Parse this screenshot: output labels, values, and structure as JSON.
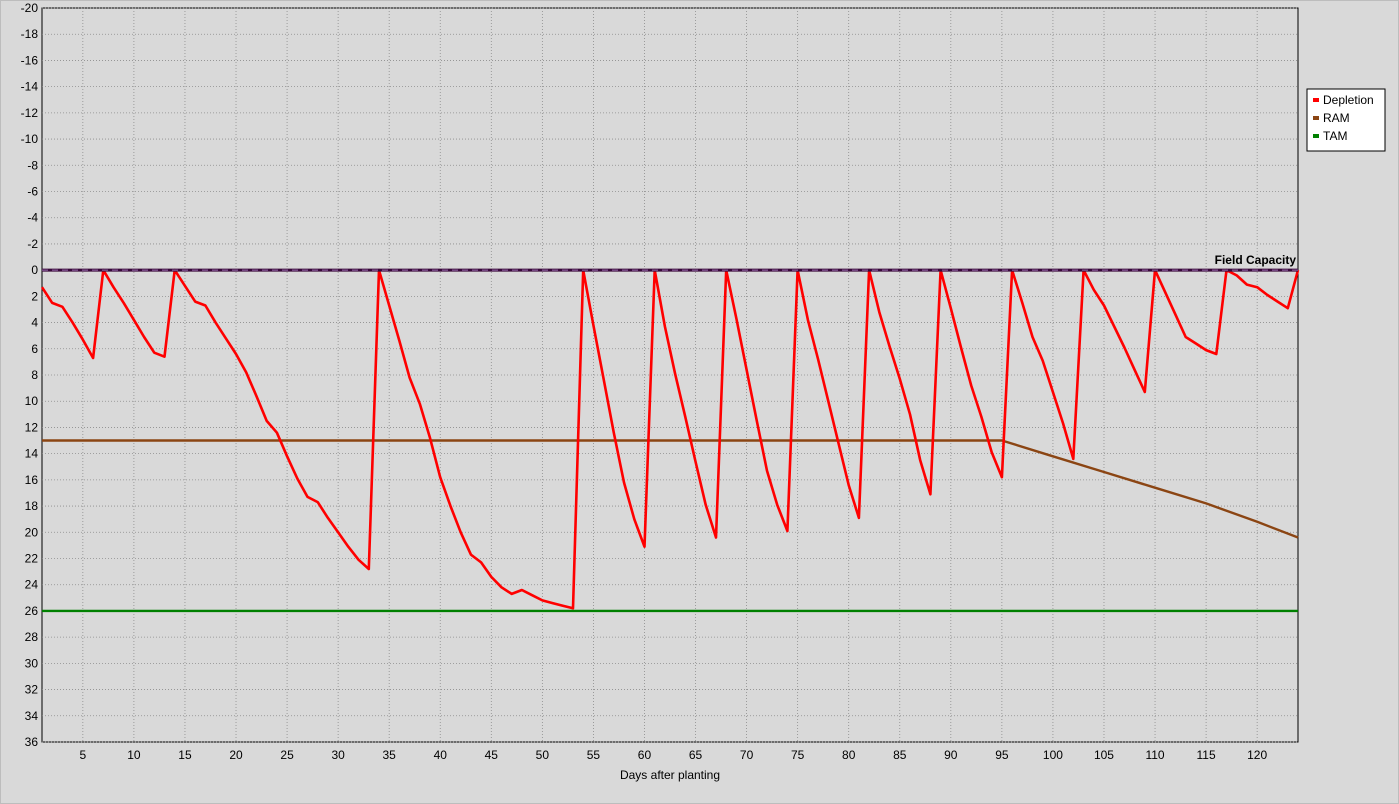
{
  "chart_data": {
    "type": "line",
    "xlabel": "Days after planting",
    "ylabel": "",
    "xlim": [
      1,
      124
    ],
    "ylim": [
      -20,
      36
    ],
    "y_inverted": true,
    "grid": true,
    "legend_position": "right",
    "x_ticks": [
      5,
      10,
      15,
      20,
      25,
      30,
      35,
      40,
      45,
      50,
      55,
      60,
      65,
      70,
      75,
      80,
      85,
      90,
      95,
      100,
      105,
      110,
      115,
      120
    ],
    "y_ticks": [
      -20,
      -18,
      -16,
      -14,
      -12,
      -10,
      -8,
      -6,
      -4,
      -2,
      0,
      2,
      4,
      6,
      8,
      10,
      12,
      14,
      16,
      18,
      20,
      22,
      24,
      26,
      28,
      30,
      32,
      34,
      36
    ],
    "annotations": [
      {
        "text": "Field Capacity",
        "y": 0,
        "color": "#3a0a3a"
      }
    ],
    "series": [
      {
        "name": "Depletion",
        "color": "#ff0000",
        "points": [
          [
            1,
            1.3
          ],
          [
            2,
            2.5
          ],
          [
            3,
            2.8
          ],
          [
            4,
            4.0
          ],
          [
            5,
            5.3
          ],
          [
            6,
            6.7
          ],
          [
            7,
            0
          ],
          [
            8,
            1.3
          ],
          [
            9,
            2.5
          ],
          [
            10,
            3.8
          ],
          [
            11,
            5.1
          ],
          [
            12,
            6.3
          ],
          [
            13,
            6.6
          ],
          [
            14,
            0
          ],
          [
            15,
            1.2
          ],
          [
            16,
            2.4
          ],
          [
            17,
            2.7
          ],
          [
            18,
            4.0
          ],
          [
            19,
            5.2
          ],
          [
            20,
            6.4
          ],
          [
            21,
            7.8
          ],
          [
            22,
            9.6
          ],
          [
            23,
            11.5
          ],
          [
            24,
            12.4
          ],
          [
            25,
            14.2
          ],
          [
            26,
            15.9
          ],
          [
            27,
            17.3
          ],
          [
            28,
            17.7
          ],
          [
            29,
            18.9
          ],
          [
            30,
            20.0
          ],
          [
            31,
            21.1
          ],
          [
            32,
            22.1
          ],
          [
            33,
            22.8
          ],
          [
            34,
            0
          ],
          [
            35,
            2.7
          ],
          [
            36,
            5.4
          ],
          [
            37,
            8.2
          ],
          [
            38,
            10.2
          ],
          [
            39,
            12.8
          ],
          [
            40,
            15.8
          ],
          [
            41,
            18.0
          ],
          [
            42,
            20.0
          ],
          [
            43,
            21.7
          ],
          [
            44,
            22.3
          ],
          [
            45,
            23.4
          ],
          [
            46,
            24.2
          ],
          [
            47,
            24.7
          ],
          [
            48,
            24.4
          ],
          [
            49,
            24.8
          ],
          [
            50,
            25.2
          ],
          [
            51,
            25.4
          ],
          [
            52,
            25.6
          ],
          [
            53,
            25.8
          ],
          [
            54,
            0
          ],
          [
            55,
            4.2
          ],
          [
            56,
            8.3
          ],
          [
            57,
            12.4
          ],
          [
            58,
            16.2
          ],
          [
            59,
            19.0
          ],
          [
            60,
            21.1
          ],
          [
            61,
            0
          ],
          [
            62,
            4.3
          ],
          [
            63,
            7.9
          ],
          [
            64,
            11.2
          ],
          [
            65,
            14.6
          ],
          [
            66,
            17.9
          ],
          [
            67,
            20.4
          ],
          [
            68,
            0
          ],
          [
            69,
            3.7
          ],
          [
            70,
            7.6
          ],
          [
            71,
            11.5
          ],
          [
            72,
            15.3
          ],
          [
            73,
            17.9
          ],
          [
            74,
            19.9
          ],
          [
            75,
            0
          ],
          [
            76,
            3.8
          ],
          [
            77,
            6.8
          ],
          [
            78,
            10.0
          ],
          [
            79,
            13.2
          ],
          [
            80,
            16.4
          ],
          [
            81,
            18.9
          ],
          [
            82,
            0
          ],
          [
            83,
            3.2
          ],
          [
            84,
            5.8
          ],
          [
            85,
            8.3
          ],
          [
            86,
            11.0
          ],
          [
            87,
            14.5
          ],
          [
            88,
            17.1
          ],
          [
            89,
            0
          ],
          [
            90,
            2.9
          ],
          [
            91,
            5.9
          ],
          [
            92,
            8.8
          ],
          [
            93,
            11.2
          ],
          [
            94,
            13.9
          ],
          [
            95,
            15.8
          ],
          [
            96,
            0
          ],
          [
            97,
            2.5
          ],
          [
            98,
            5.1
          ],
          [
            99,
            6.9
          ],
          [
            100,
            9.3
          ],
          [
            101,
            11.7
          ],
          [
            102,
            14.4
          ],
          [
            103,
            0
          ],
          [
            104,
            1.5
          ],
          [
            105,
            2.7
          ],
          [
            106,
            4.3
          ],
          [
            107,
            5.9
          ],
          [
            108,
            7.6
          ],
          [
            109,
            9.3
          ],
          [
            110,
            0
          ],
          [
            111,
            1.7
          ],
          [
            112,
            3.4
          ],
          [
            113,
            5.1
          ],
          [
            114,
            5.6
          ],
          [
            115,
            6.1
          ],
          [
            116,
            6.4
          ],
          [
            117,
            0
          ],
          [
            118,
            0.4
          ],
          [
            119,
            1.1
          ],
          [
            120,
            1.3
          ],
          [
            121,
            1.9
          ],
          [
            122,
            2.4
          ],
          [
            123,
            2.9
          ],
          [
            124,
            0
          ]
        ]
      },
      {
        "name": "RAM",
        "color": "#8b4513",
        "points": [
          [
            1,
            13
          ],
          [
            95,
            13
          ],
          [
            100,
            14.2
          ],
          [
            105,
            15.4
          ],
          [
            110,
            16.6
          ],
          [
            115,
            17.8
          ],
          [
            120,
            19.2
          ],
          [
            124,
            20.4
          ]
        ]
      },
      {
        "name": "TAM",
        "color": "#008000",
        "points": [
          [
            1,
            26
          ],
          [
            124,
            26
          ]
        ]
      }
    ]
  }
}
